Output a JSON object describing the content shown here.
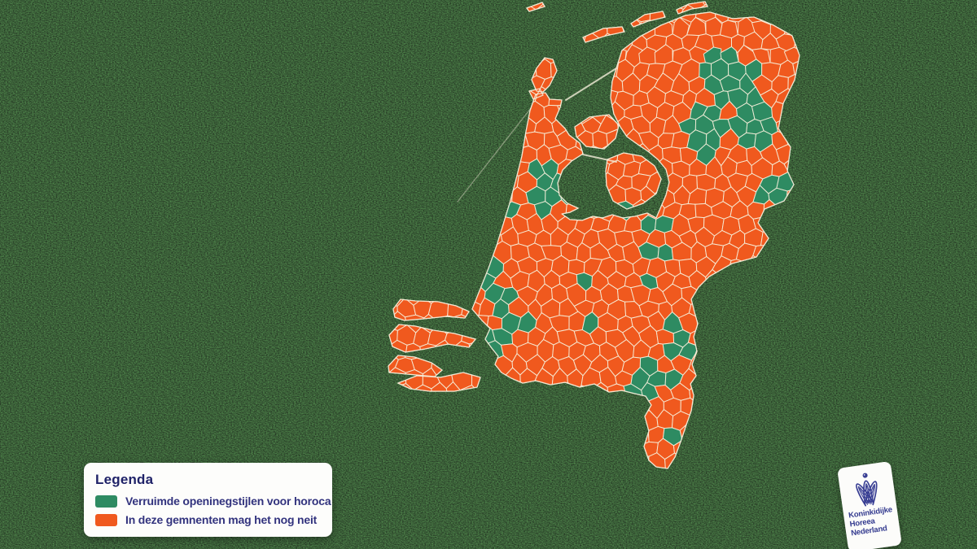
{
  "legend": {
    "title": "Legenda",
    "items": [
      {
        "key": "open_wider",
        "label": "Verruimde openinegstijlen voor horoca"
      },
      {
        "key": "open_not_yet",
        "label": "In deze gemnenten mag het nog neit"
      }
    ]
  },
  "logo": {
    "line1": "Koninkidijke",
    "line2": "Horeea",
    "line3": "Nederland",
    "crown_color": "#383e93"
  },
  "map": {
    "title": "Choropleth of Dutch municipalities",
    "colors": {
      "open_wider": "#2E8B62",
      "open_not_yet": "#F0591E",
      "border": "#F6EFDA",
      "water_line": "#F2ECD8",
      "background_green": "#3a5c3a"
    },
    "grid": {
      "size": 11.5,
      "jitter": 6
    },
    "land": [
      "M658,116 L670,114 675,122 690,123 688,132 682,146 694,158 699,166 712,176 716,189 702,198 691,209 685,225 687,240 697,250 710,256 700,261 690,263 700,270 715,271 728,266 740,268 752,264 765,268 780,266 795,262 806,268 812,254 818,240 822,224 818,208 808,196 796,186 784,178 770,168 762,156 754,140 750,120 752,100 757,84 764,62 786,45 812,31 842,19 872,15 900,23 926,21 950,31 973,44 982,68 976,98 962,127 956,158 971,181 967,210 975,227 963,247 939,257 931,274 944,293 929,316 899,324 871,340 858,353 849,368 853,384 857,398 852,414 856,432 850,448 855,462 848,472 852,486 849,505 843,522 836,543 829,562 820,576 806,574 797,566 791,549 797,530 792,512 800,498 793,487 780,484 764,480 748,482 730,472 712,476 694,470 676,473 658,468 642,471 628,465 616,458 608,448 612,438 604,428 596,417 602,404 592,394 580,380 590,355 600,330 610,302 618,276 626,250 634,220 641,192 646,162 651,136 Z",
      "M706,156 L724,144 748,141 760,154 756,170 742,183 720,180 708,168 Z",
      "M746,196 L766,188 788,192 804,204 812,220 806,238 790,250 770,257 753,247 745,228 744,210 Z",
      "M659,112 L653,98 659,84 669,71 679,73 684,87 675,105 667,113 Z",
      "M650,112 L663,109 667,117 655,122 Z",
      "M716,46 L741,35 764,33 767,39 744,44 719,52 Z",
      "M775,29 L792,18 814,14 817,21 796,26 778,33 Z",
      "M831,12 L846,5 866,2 869,8 849,11 833,17 Z",
      "M647,10 L666,3 669,8 650,14 Z",
      "M483,380 L492,368 510,370 538,371 560,376 576,383 571,391 548,389 520,392 497,394 485,390 Z",
      "M478,412 L490,399 510,401 532,406 558,410 584,417 576,427 550,423 522,429 498,433 482,426 Z",
      "M477,450 L489,437 509,439 530,446 543,455 534,463 512,461 490,459 478,458 Z",
      "M489,471 L512,462 541,464 569,458 590,464 586,476 558,481 528,481 504,478 Z"
    ],
    "dikes": [
      "M695,123 L757,84",
      "M716,190 L757,199",
      "M652,133 L562,248"
    ],
    "green_zones": [
      [
        888,
        82,
        26
      ],
      [
        920,
        100,
        16
      ],
      [
        905,
        118,
        20
      ],
      [
        862,
        150,
        26
      ],
      [
        870,
        183,
        13
      ],
      [
        928,
        150,
        30
      ],
      [
        950,
        235,
        22
      ],
      [
        806,
        274,
        12
      ],
      [
        668,
        215,
        20
      ],
      [
        686,
        240,
        16
      ],
      [
        662,
        252,
        14
      ],
      [
        628,
        268,
        10
      ],
      [
        590,
        335,
        22
      ],
      [
        612,
        368,
        18
      ],
      [
        633,
        395,
        15
      ],
      [
        606,
        424,
        18
      ],
      [
        770,
        262,
        10
      ],
      [
        806,
        280,
        12
      ],
      [
        808,
        312,
        13
      ],
      [
        802,
        350,
        9
      ],
      [
        715,
        345,
        17
      ],
      [
        727,
        388,
        9
      ],
      [
        828,
        398,
        13
      ],
      [
        838,
        428,
        16
      ],
      [
        824,
        462,
        15
      ],
      [
        793,
        465,
        19
      ],
      [
        779,
        486,
        11
      ],
      [
        828,
        537,
        9
      ],
      [
        795,
        565,
        11
      ]
    ]
  }
}
